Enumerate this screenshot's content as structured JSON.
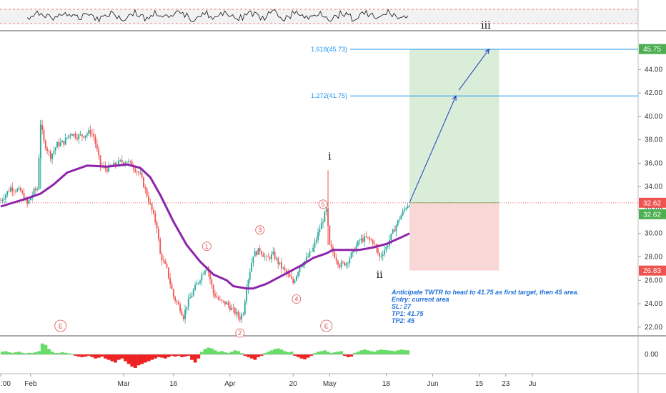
{
  "chart_data": {
    "type": "candlestick",
    "symbol": "TWTR",
    "price_axis": {
      "ylim": [
        21.5,
        47.5
      ],
      "ticks": [
        "22.00",
        "24.00",
        "26.00",
        "28.00",
        "30.00",
        "32.00",
        "34.00",
        "36.00",
        "38.00",
        "40.00",
        "42.00",
        "44.00"
      ],
      "grid": false
    },
    "time_axis": {
      "labels": [
        {
          "label": ":00",
          "day": 0
        },
        {
          "label": "Feb",
          "day": 9
        },
        {
          "label": "Mar",
          "day": 37
        },
        {
          "label": "16",
          "day": 52
        },
        {
          "label": "Apr",
          "day": 69
        },
        {
          "label": "20",
          "day": 88
        },
        {
          "label": "May",
          "day": 99
        },
        {
          "label": "18",
          "day": 116
        },
        {
          "label": "Jun",
          "day": 130
        },
        {
          "label": "15",
          "day": 144
        },
        {
          "label": "23",
          "day": 152
        },
        {
          "label": "Ju",
          "day": 160
        }
      ]
    },
    "price_path": [
      [
        0,
        32.8
      ],
      [
        3,
        33.9
      ],
      [
        6,
        33.6
      ],
      [
        8,
        32.5
      ],
      [
        10,
        33.6
      ],
      [
        11,
        33.8
      ],
      [
        12,
        39.4
      ],
      [
        13,
        37.8
      ],
      [
        15,
        36.6
      ],
      [
        17,
        37.6
      ],
      [
        19,
        37.8
      ],
      [
        21,
        38.6
      ],
      [
        23,
        38.3
      ],
      [
        25,
        38.4
      ],
      [
        27,
        38.7
      ],
      [
        28,
        38.3
      ],
      [
        30,
        35.8
      ],
      [
        32,
        35.5
      ],
      [
        34,
        35.8
      ],
      [
        35,
        36.0
      ],
      [
        36,
        36.1
      ],
      [
        38,
        36.2
      ],
      [
        40,
        35.7
      ],
      [
        42,
        35.0
      ],
      [
        44,
        33.3
      ],
      [
        46,
        31.5
      ],
      [
        47,
        30.6
      ],
      [
        48,
        28.2
      ],
      [
        50,
        26.9
      ],
      [
        52,
        24.6
      ],
      [
        54,
        23.6
      ],
      [
        55,
        22.9
      ],
      [
        56,
        23.9
      ],
      [
        58,
        25.1
      ],
      [
        60,
        26.2
      ],
      [
        62,
        27.3
      ],
      [
        64,
        24.9
      ],
      [
        66,
        24.2
      ],
      [
        68,
        24.0
      ],
      [
        70,
        23.4
      ],
      [
        72,
        22.8
      ],
      [
        73,
        23.3
      ],
      [
        74,
        25.5
      ],
      [
        76,
        28.2
      ],
      [
        78,
        28.6
      ],
      [
        80,
        27.8
      ],
      [
        82,
        28.2
      ],
      [
        84,
        27.3
      ],
      [
        86,
        26.6
      ],
      [
        88,
        25.8
      ],
      [
        90,
        27.2
      ],
      [
        92,
        27.8
      ],
      [
        94,
        28.7
      ],
      [
        96,
        30.4
      ],
      [
        97,
        31.2
      ],
      [
        98,
        32.0
      ],
      [
        99,
        28.9
      ],
      [
        100,
        28.4
      ],
      [
        102,
        27.3
      ],
      [
        104,
        27.5
      ],
      [
        106,
        28.4
      ],
      [
        108,
        29.4
      ],
      [
        110,
        29.6
      ],
      [
        112,
        29.3
      ],
      [
        114,
        28.0
      ],
      [
        116,
        28.8
      ],
      [
        118,
        30.1
      ],
      [
        120,
        31.3
      ],
      [
        122,
        32.3
      ],
      [
        123,
        32.62
      ]
    ],
    "moving_average": [
      [
        0,
        32.3
      ],
      [
        8,
        33.0
      ],
      [
        12,
        33.4
      ],
      [
        16,
        34.2
      ],
      [
        20,
        35.2
      ],
      [
        26,
        35.8
      ],
      [
        32,
        35.7
      ],
      [
        38,
        35.9
      ],
      [
        42,
        35.6
      ],
      [
        45,
        34.8
      ],
      [
        48,
        33.3
      ],
      [
        52,
        31.0
      ],
      [
        56,
        29.0
      ],
      [
        60,
        27.6
      ],
      [
        64,
        26.5
      ],
      [
        68,
        26.0
      ],
      [
        70,
        25.5
      ],
      [
        74,
        25.3
      ],
      [
        76,
        25.3
      ],
      [
        80,
        25.7
      ],
      [
        86,
        26.6
      ],
      [
        90,
        27.2
      ],
      [
        94,
        27.9
      ],
      [
        98,
        28.3
      ],
      [
        100,
        28.6
      ],
      [
        104,
        28.6
      ],
      [
        108,
        28.6
      ],
      [
        112,
        28.8
      ],
      [
        116,
        29.1
      ],
      [
        120,
        29.6
      ],
      [
        123,
        30.0
      ]
    ],
    "levels": {
      "current_price": "32.62",
      "target_2": "45.75",
      "stop_loss": "26.83"
    },
    "fibonacci": [
      {
        "label": "1.618(45.73)",
        "value": 45.73
      },
      {
        "label": "1.272(41.75)",
        "value": 41.75
      }
    ],
    "position": {
      "start_day": 123,
      "end_day": 150,
      "entry": 32.62,
      "target": 45.75,
      "stop": 26.83,
      "reward_color": "#b9dfb9",
      "risk_color": "#f8c9c9"
    },
    "projection": [
      [
        123,
        32.62
      ],
      [
        137,
        41.75
      ],
      [
        147,
        45.75
      ]
    ],
    "wave_labels": [
      {
        "text": "i",
        "day": 99,
        "price": 36.3,
        "style": "major"
      },
      {
        "text": "ii",
        "day": 114,
        "price": 26.2,
        "style": "major"
      },
      {
        "text": "iii",
        "day": 146,
        "price": 47.5,
        "style": "major"
      },
      {
        "text": "1",
        "day": 62,
        "price": 28.9,
        "style": "minor"
      },
      {
        "text": "3",
        "day": 78,
        "price": 30.3,
        "style": "minor"
      },
      {
        "text": "4",
        "day": 89,
        "price": 24.4,
        "style": "minor"
      },
      {
        "text": "5",
        "day": 97,
        "price": 32.5,
        "style": "minor"
      },
      {
        "text": "2",
        "day": 72,
        "price": 21.5,
        "style": "minor"
      }
    ],
    "earnings_markers": [
      {
        "text": "E",
        "day": 18
      },
      {
        "text": "E",
        "day": 98
      }
    ],
    "annotation": {
      "lines": [
        "Anticipate TWTR to head to 41.75 as first target, then 45 area.",
        "Entry: current area",
        "SL: 27",
        "TP1: 41.75",
        "TP2: 45"
      ]
    },
    "oscillator_top": {
      "type": "line",
      "dashed_levels": true
    },
    "histogram_bottom": {
      "type": "bar",
      "ticks": [
        "0.00"
      ],
      "ylim": [
        -0.5,
        0.5
      ],
      "values": [
        0.1,
        0.12,
        0.08,
        0.05,
        0.08,
        0.1,
        0.06,
        0.04,
        0.06,
        0.05,
        0.08,
        0.12,
        0.4,
        0.35,
        0.2,
        0.1,
        0.05,
        0.05,
        0.08,
        0.06,
        0.04,
        0.02,
        -0.05,
        -0.08,
        -0.1,
        -0.08,
        -0.05,
        -0.1,
        -0.15,
        -0.12,
        -0.08,
        -0.15,
        -0.2,
        -0.25,
        -0.3,
        -0.2,
        -0.15,
        -0.25,
        -0.35,
        -0.45,
        -0.5,
        -0.4,
        -0.35,
        -0.3,
        -0.25,
        -0.2,
        -0.15,
        -0.1,
        -0.12,
        -0.15,
        -0.1,
        -0.05,
        -0.08,
        -0.05,
        -0.1,
        -0.08,
        -0.05,
        -0.2,
        -0.3,
        -0.15,
        0.1,
        0.2,
        0.25,
        0.22,
        0.15,
        0.1,
        0.12,
        0.08,
        0.05,
        0.1,
        0.15,
        0.12,
        0.05,
        -0.05,
        -0.1,
        -0.15,
        -0.2,
        -0.1,
        -0.05,
        0.05,
        0.1,
        0.15,
        0.2,
        0.22,
        0.18,
        0.12,
        0.08,
        0.1,
        -0.05,
        -0.1,
        -0.15,
        -0.18,
        -0.12,
        -0.05,
        0.05,
        0.1,
        0.12,
        0.15,
        0.1,
        0.05,
        0.08,
        0.1,
        0.12,
        -0.05,
        -0.1,
        -0.08,
        0.05,
        0.1,
        0.15,
        0.18,
        0.15,
        0.12,
        0.1,
        0.15,
        0.18,
        0.16,
        0.15,
        0.14,
        0.12,
        0.15,
        0.18,
        0.16,
        0.15
      ]
    },
    "colors": {
      "up": "#26a69a",
      "down": "#ef5350",
      "ma": "#8e24aa",
      "projection": "#1a3fbf",
      "fib": "#2196f3",
      "badge_green": "#4caf50",
      "badge_red": "#ef5350",
      "price_line": "#ef5350"
    }
  }
}
